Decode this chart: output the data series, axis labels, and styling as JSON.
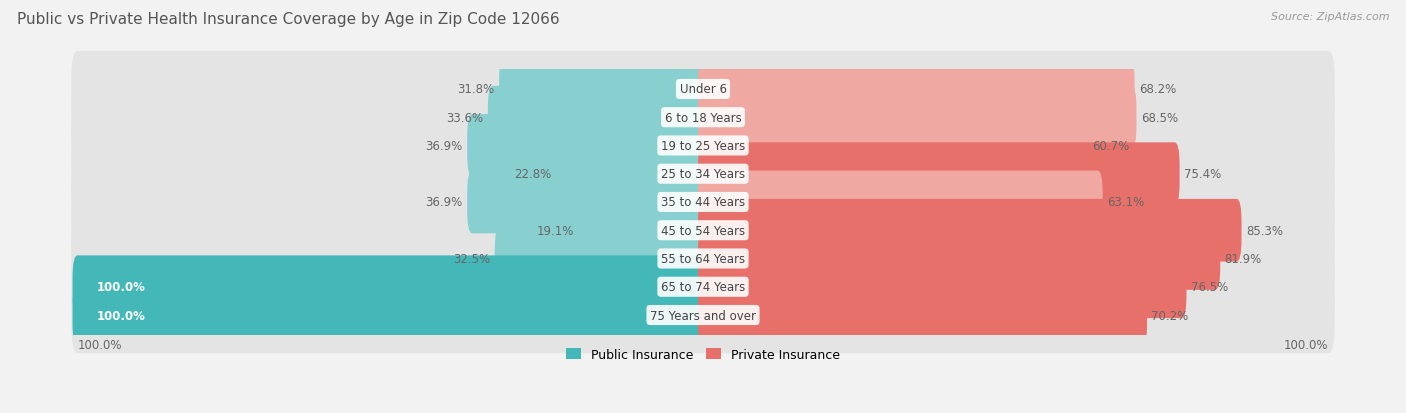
{
  "title": "Public vs Private Health Insurance Coverage by Age in Zip Code 12066",
  "source": "Source: ZipAtlas.com",
  "categories": [
    "Under 6",
    "6 to 18 Years",
    "19 to 25 Years",
    "25 to 34 Years",
    "35 to 44 Years",
    "45 to 54 Years",
    "55 to 64 Years",
    "65 to 74 Years",
    "75 Years and over"
  ],
  "public_values": [
    31.8,
    33.6,
    36.9,
    22.8,
    36.9,
    19.1,
    32.5,
    100.0,
    100.0
  ],
  "private_values": [
    68.2,
    68.5,
    60.7,
    75.4,
    63.1,
    85.3,
    81.9,
    76.5,
    70.2
  ],
  "public_color": "#44b8b8",
  "private_color": "#e8706a",
  "public_color_light": "#88d0d0",
  "private_color_light": "#f0a8a2",
  "bg_color": "#f2f2f2",
  "row_bg_color": "#e4e4e4",
  "title_color": "#555555",
  "source_color": "#999999",
  "label_color_dark": "#666666",
  "label_color_white": "#ffffff",
  "bar_height": 0.62,
  "legend_public": "Public Insurance",
  "legend_private": "Private Insurance",
  "axis_label_fontsize": 8.5,
  "bar_label_fontsize": 8.5,
  "cat_label_fontsize": 8.5,
  "title_fontsize": 11,
  "source_fontsize": 8
}
